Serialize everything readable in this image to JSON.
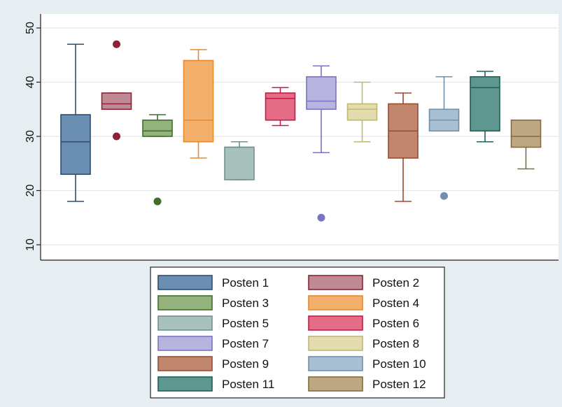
{
  "chart_data": {
    "type": "boxplot",
    "title": "",
    "xlabel": "",
    "ylabel": "",
    "ylim": [
      7,
      53
    ],
    "yticks": [
      "10",
      "20",
      "30",
      "40",
      "50"
    ],
    "grid": true,
    "legend_position": "bottom",
    "series": [
      {
        "name": "Posten 1",
        "color": "#6a8eb1",
        "stroke": "#2d4e73",
        "min": 18,
        "q1": 23,
        "median": 29,
        "q3": 34,
        "max": 47,
        "outliers": []
      },
      {
        "name": "Posten 2",
        "color": "#c08a94",
        "stroke": "#8f2136",
        "min": 35,
        "q1": 35,
        "median": 36,
        "q3": 38,
        "max": 38,
        "outliers": [
          47,
          30
        ]
      },
      {
        "name": "Posten 3",
        "color": "#93b27c",
        "stroke": "#3f6e2d",
        "min": 30,
        "q1": 30,
        "median": 31,
        "q3": 33,
        "max": 34,
        "outliers": [
          18
        ]
      },
      {
        "name": "Posten 4",
        "color": "#f2b06c",
        "stroke": "#e8892e",
        "min": 26,
        "q1": 29,
        "median": 33,
        "q3": 44,
        "max": 46,
        "outliers": []
      },
      {
        "name": "Posten 5",
        "color": "#a8c1bd",
        "stroke": "#6f928c",
        "min": 22,
        "q1": 22,
        "median": 28,
        "q3": 28,
        "max": 29,
        "outliers": []
      },
      {
        "name": "Posten 6",
        "color": "#e46c86",
        "stroke": "#c11d46",
        "min": 32,
        "q1": 33,
        "median": 37,
        "q3": 38,
        "max": 39,
        "outliers": []
      },
      {
        "name": "Posten 7",
        "color": "#b8b4e0",
        "stroke": "#7a74c2",
        "min": 27,
        "q1": 35,
        "median": 36.5,
        "q3": 41,
        "max": 43,
        "outliers": [
          15
        ]
      },
      {
        "name": "Posten 8",
        "color": "#e2dcae",
        "stroke": "#c0b772",
        "min": 29,
        "q1": 33,
        "median": 35,
        "q3": 36,
        "max": 40,
        "outliers": []
      },
      {
        "name": "Posten 9",
        "color": "#c0866e",
        "stroke": "#9a4a30",
        "min": 18,
        "q1": 26,
        "median": 31,
        "q3": 36,
        "max": 38,
        "outliers": []
      },
      {
        "name": "Posten 10",
        "color": "#a9bfd2",
        "stroke": "#7290ad",
        "min": 31,
        "q1": 31,
        "median": 33,
        "q3": 35,
        "max": 41,
        "outliers": [
          19
        ]
      },
      {
        "name": "Posten 11",
        "color": "#5d978f",
        "stroke": "#1c6057",
        "min": 29,
        "q1": 31,
        "median": 39,
        "q3": 41,
        "max": 42,
        "outliers": []
      },
      {
        "name": "Posten 12",
        "color": "#bca882",
        "stroke": "#846b3d",
        "min": 24,
        "q1": 28,
        "median": 30,
        "q3": 33,
        "max": 33,
        "outliers": []
      }
    ]
  }
}
